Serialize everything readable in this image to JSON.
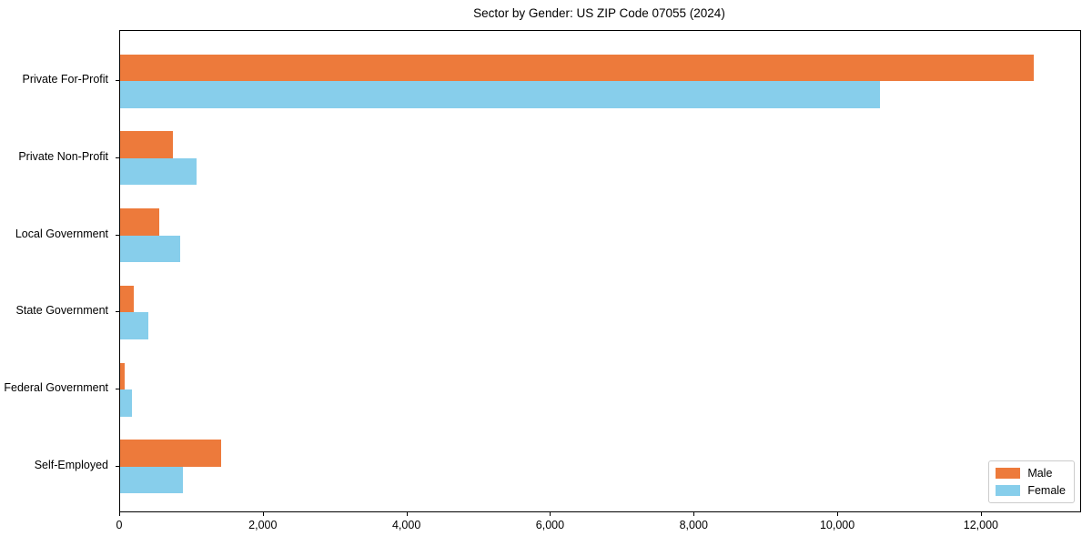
{
  "chart_data": {
    "type": "bar",
    "orientation": "horizontal",
    "title": "Sector by Gender: US ZIP Code 07055 (2024)",
    "categories": [
      "Private For-Profit",
      "Private Non-Profit",
      "Local Government",
      "State Government",
      "Federal Government",
      "Self-Employed"
    ],
    "series": [
      {
        "name": "Male",
        "color": "#ED7A3B",
        "values": [
          12720,
          730,
          545,
          190,
          65,
          1410
        ]
      },
      {
        "name": "Female",
        "color": "#87CEEB",
        "values": [
          10580,
          1060,
          835,
          390,
          160,
          875
        ]
      }
    ],
    "xlabel": "",
    "ylabel": "",
    "xlim": [
      0,
      13370
    ],
    "x_ticks": [
      0,
      2000,
      4000,
      6000,
      8000,
      10000,
      12000
    ],
    "x_tick_labels": [
      "0",
      "2,000",
      "4,000",
      "6,000",
      "8,000",
      "10,000",
      "12,000"
    ],
    "grid": false,
    "legend_position": "lower right",
    "colors": {
      "male": "#ED7A3B",
      "female": "#87CEEB",
      "spine": "#000000",
      "legend_border": "#cccccc"
    }
  }
}
